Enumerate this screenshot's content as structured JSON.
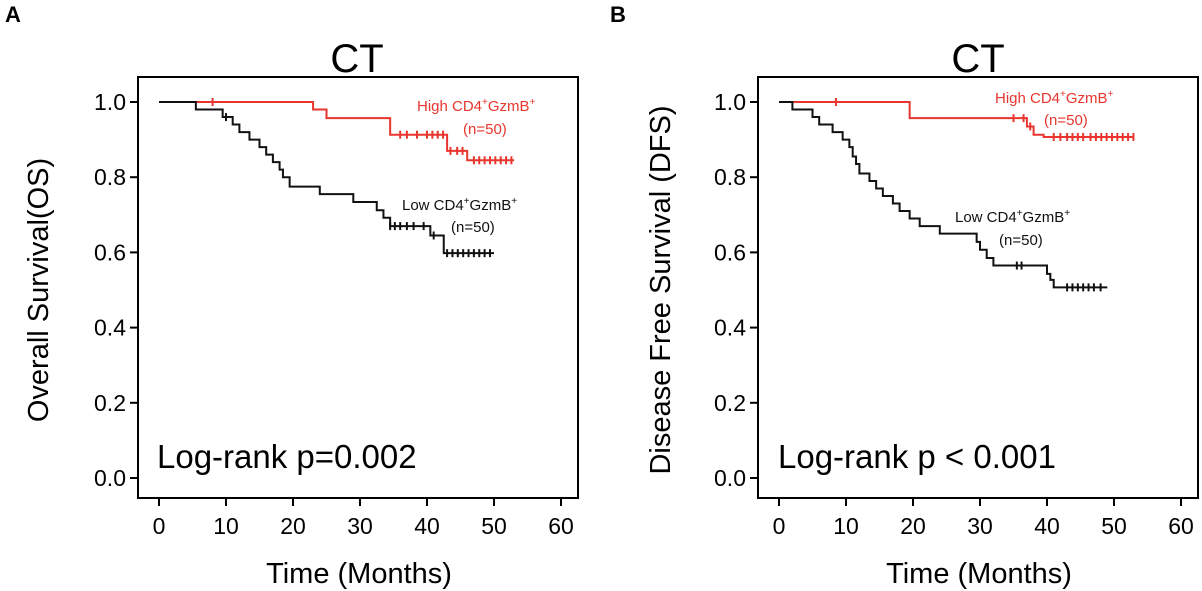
{
  "chart_data": [
    {
      "type": "line",
      "panel_label": "A",
      "title": "CT",
      "xlabel": "Time (Months)",
      "ylabel": "Overall Survival(OS)",
      "xlim": [
        0,
        60
      ],
      "ylim": [
        0,
        1.0
      ],
      "xticks": [
        "0",
        "10",
        "20",
        "30",
        "40",
        "50",
        "60"
      ],
      "yticks": [
        "0.0",
        "0.2",
        "0.4",
        "0.6",
        "0.8",
        "1.0"
      ],
      "annotation": "Log-rank p=0.002",
      "series": [
        {
          "name": "High CD4⁺GzmB⁺ (n=50)",
          "label_line1_base": "High CD4",
          "label_line1_mid": "GzmB",
          "sup": "+",
          "label_line2": "(n=50)",
          "color": "#e8352e",
          "steps": [
            [
              0,
              1.0
            ],
            [
              23,
              0.98
            ],
            [
              25,
              0.957
            ],
            [
              34.5,
              0.913
            ],
            [
              43,
              0.87
            ],
            [
              46,
              0.845
            ],
            [
              53,
              0.845
            ]
          ],
          "censors": [
            8,
            36,
            37,
            38.5,
            40,
            40.8,
            41.6,
            42.4,
            43.5,
            44.5,
            45.3,
            47,
            47.8,
            48.6,
            49.4,
            50.2,
            51,
            51.8,
            52.6
          ]
        },
        {
          "name": "Low CD4⁺GzmB⁺ (n=50)",
          "label_line1_base": "Low CD4",
          "label_line1_mid": "GzmB",
          "sup": "+",
          "label_line2": "(n=50)",
          "color": "#111111",
          "steps": [
            [
              0,
              1.0
            ],
            [
              5.5,
              0.98
            ],
            [
              9.5,
              0.96
            ],
            [
              11,
              0.94
            ],
            [
              12,
              0.92
            ],
            [
              13.5,
              0.9
            ],
            [
              15,
              0.88
            ],
            [
              16,
              0.86
            ],
            [
              17,
              0.84
            ],
            [
              18,
              0.82
            ],
            [
              18.5,
              0.8
            ],
            [
              19.5,
              0.775
            ],
            [
              22,
              0.775
            ],
            [
              24,
              0.755
            ],
            [
              27,
              0.755
            ],
            [
              29,
              0.734
            ],
            [
              32.5,
              0.712
            ],
            [
              33.5,
              0.692
            ],
            [
              34.5,
              0.67
            ],
            [
              40.5,
              0.645
            ],
            [
              42.5,
              0.598
            ],
            [
              50,
              0.598
            ]
          ],
          "censors": [
            10,
            34.5,
            35.2,
            36,
            37,
            38,
            39.5,
            41,
            43,
            43.8,
            44.6,
            45.4,
            46.2,
            47,
            47.8,
            48.6,
            49.4
          ]
        }
      ]
    },
    {
      "type": "line",
      "panel_label": "B",
      "title": "CT",
      "xlabel": "Time (Months)",
      "ylabel": "Disease Free Survival (DFS)",
      "xlim": [
        0,
        60
      ],
      "ylim": [
        0,
        1.0
      ],
      "xticks": [
        "0",
        "10",
        "20",
        "30",
        "40",
        "50",
        "60"
      ],
      "yticks": [
        "0.0",
        "0.2",
        "0.4",
        "0.6",
        "0.8",
        "1.0"
      ],
      "annotation": "Log-rank p < 0.001",
      "series": [
        {
          "name": "High CD4⁺GzmB⁺ (n=50)",
          "label_line1_base": "High CD4",
          "label_line1_mid": "GzmB",
          "sup": "+",
          "label_line2": "(n=50)",
          "color": "#e8352e",
          "steps": [
            [
              0,
              1.0
            ],
            [
              19.5,
              0.957
            ],
            [
              37,
              0.935
            ],
            [
              38,
              0.913
            ],
            [
              39.5,
              0.907
            ],
            [
              53,
              0.907
            ]
          ],
          "censors": [
            8.5,
            35,
            36.5,
            37.5,
            41,
            42,
            43,
            43.8,
            44.6,
            45.4,
            46.5,
            47.3,
            48.1,
            48.9,
            49.7,
            50.5,
            51.3,
            52.1,
            52.9
          ]
        },
        {
          "name": "Low CD4⁺GzmB⁺ (n=50)",
          "label_line1_base": "Low CD4",
          "label_line1_mid": "GzmB",
          "sup": "+",
          "label_line2": "(n=50)",
          "color": "#111111",
          "steps": [
            [
              0,
              1.0
            ],
            [
              2,
              0.98
            ],
            [
              5,
              0.96
            ],
            [
              6,
              0.94
            ],
            [
              8,
              0.92
            ],
            [
              9.5,
              0.9
            ],
            [
              10.5,
              0.88
            ],
            [
              11,
              0.855
            ],
            [
              11.5,
              0.835
            ],
            [
              12,
              0.81
            ],
            [
              13.5,
              0.79
            ],
            [
              14.5,
              0.77
            ],
            [
              15.5,
              0.75
            ],
            [
              17,
              0.73
            ],
            [
              18,
              0.71
            ],
            [
              19.5,
              0.69
            ],
            [
              21,
              0.67
            ],
            [
              24,
              0.65
            ],
            [
              29.5,
              0.628
            ],
            [
              30,
              0.607
            ],
            [
              31,
              0.585
            ],
            [
              32,
              0.565
            ],
            [
              40,
              0.543
            ],
            [
              40.5,
              0.527
            ],
            [
              41,
              0.507
            ],
            [
              49,
              0.507
            ]
          ],
          "censors": [
            35.5,
            36.2,
            43,
            43.8,
            44.6,
            45.4,
            46.2,
            47,
            48
          ]
        }
      ]
    }
  ]
}
